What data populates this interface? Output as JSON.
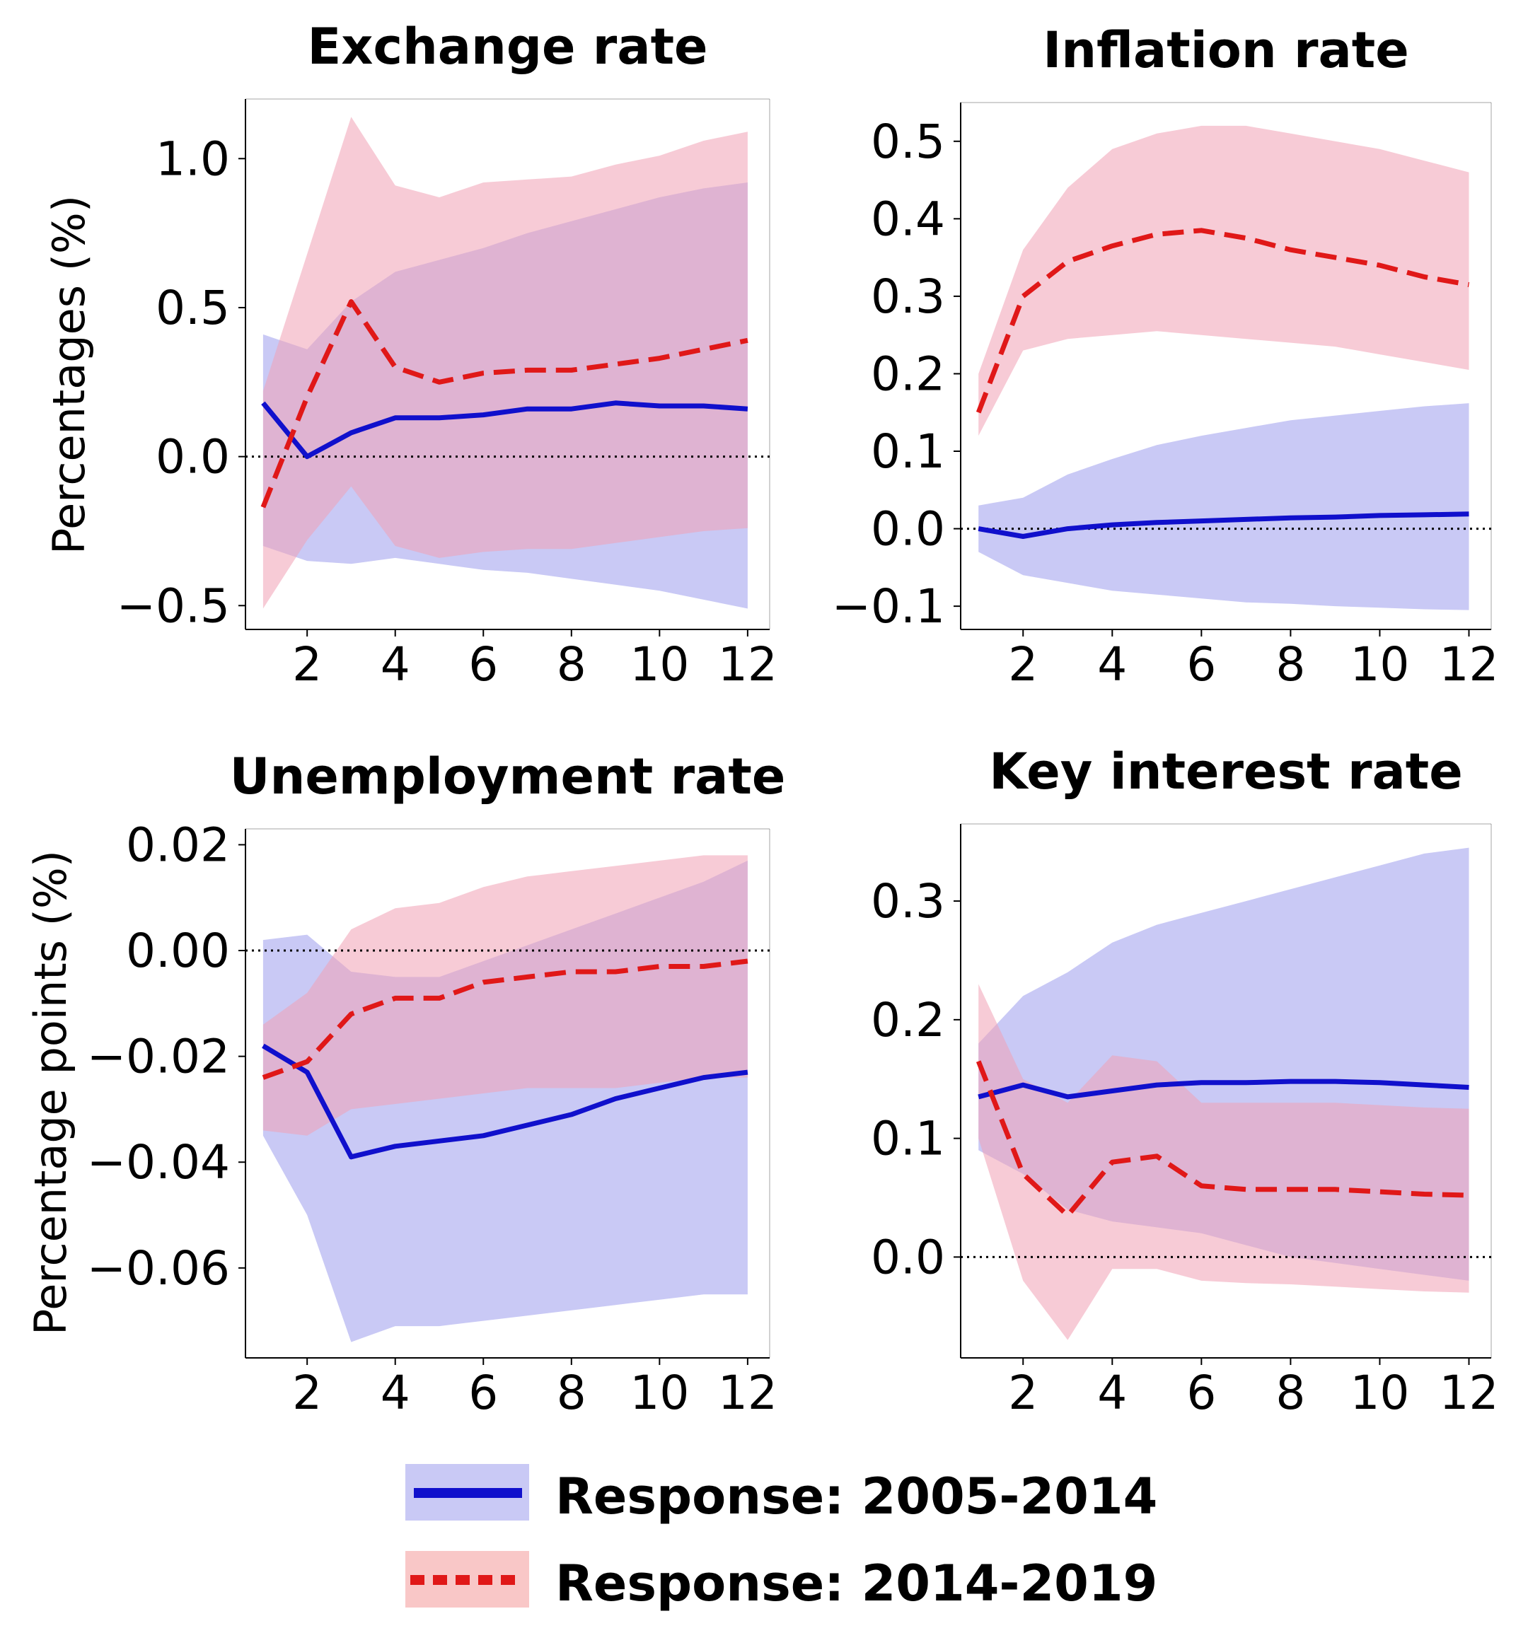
{
  "colors": {
    "series1_line": "#1010cc",
    "series1_band": "#c9c9f5",
    "series2_line": "#e01818",
    "series2_band": "#f9c7c7",
    "overlap_band": "#e8aac6"
  },
  "y_labels": {
    "top": "Percentages (%)",
    "bottom": "Percentage points  (%)"
  },
  "legend": [
    {
      "label": "Response: 2005-2014",
      "style": "solid",
      "color": "#1010cc"
    },
    {
      "label": "Response: 2014-2019",
      "style": "dotted",
      "color": "#e01818"
    }
  ],
  "chart_data": [
    {
      "type": "line",
      "title": "Exchange rate",
      "xlabel": "",
      "ylabel": "Percentages (%)",
      "x": [
        1,
        2,
        3,
        4,
        5,
        6,
        7,
        8,
        9,
        10,
        11,
        12
      ],
      "xlim": [
        0.6,
        12.5
      ],
      "ylim": [
        -0.58,
        1.2
      ],
      "xticks": [
        2,
        4,
        6,
        8,
        10,
        12
      ],
      "xtick_labels": [
        "2",
        "4",
        "6",
        "8",
        "10",
        "12"
      ],
      "yticks": [
        -0.5,
        0.0,
        0.5,
        1.0
      ],
      "ytick_labels": [
        "−0.5",
        "0.0",
        "0.5",
        "1.0"
      ],
      "zero_line": true,
      "series": [
        {
          "name": "Response: 2005-2014",
          "style": "solid",
          "values": [
            0.18,
            0.0,
            0.08,
            0.13,
            0.13,
            0.14,
            0.16,
            0.16,
            0.18,
            0.17,
            0.17,
            0.16
          ],
          "lower": [
            -0.3,
            -0.35,
            -0.36,
            -0.34,
            -0.36,
            -0.38,
            -0.39,
            -0.41,
            -0.43,
            -0.45,
            -0.48,
            -0.51
          ],
          "upper": [
            0.41,
            0.36,
            0.52,
            0.62,
            0.66,
            0.7,
            0.75,
            0.79,
            0.83,
            0.87,
            0.9,
            0.92
          ]
        },
        {
          "name": "Response: 2014-2019",
          "style": "dashed",
          "values": [
            -0.17,
            0.2,
            0.52,
            0.3,
            0.25,
            0.28,
            0.29,
            0.29,
            0.31,
            0.33,
            0.36,
            0.39
          ],
          "lower": [
            -0.51,
            -0.28,
            -0.1,
            -0.3,
            -0.34,
            -0.32,
            -0.31,
            -0.31,
            -0.29,
            -0.27,
            -0.25,
            -0.24
          ],
          "upper": [
            0.22,
            0.68,
            1.14,
            0.91,
            0.87,
            0.92,
            0.93,
            0.94,
            0.98,
            1.01,
            1.06,
            1.09
          ]
        }
      ]
    },
    {
      "type": "line",
      "title": "Inflation rate",
      "xlabel": "",
      "ylabel": "",
      "x": [
        1,
        2,
        3,
        4,
        5,
        6,
        7,
        8,
        9,
        10,
        11,
        12
      ],
      "xlim": [
        0.6,
        12.5
      ],
      "ylim": [
        -0.13,
        0.55
      ],
      "xticks": [
        2,
        4,
        6,
        8,
        10,
        12
      ],
      "xtick_labels": [
        "2",
        "4",
        "6",
        "8",
        "10",
        "12"
      ],
      "yticks": [
        -0.1,
        0.0,
        0.1,
        0.2,
        0.3,
        0.4,
        0.5
      ],
      "ytick_labels": [
        "−0.1",
        "0.0",
        "0.1",
        "0.2",
        "0.3",
        "0.4",
        "0.5"
      ],
      "zero_line": true,
      "series": [
        {
          "name": "Response: 2005-2014",
          "style": "solid",
          "values": [
            0.0,
            -0.01,
            0.0,
            0.005,
            0.008,
            0.01,
            0.012,
            0.014,
            0.015,
            0.017,
            0.018,
            0.019
          ],
          "lower": [
            -0.03,
            -0.06,
            -0.07,
            -0.08,
            -0.085,
            -0.09,
            -0.095,
            -0.097,
            -0.1,
            -0.102,
            -0.104,
            -0.105
          ],
          "upper": [
            0.03,
            0.04,
            0.07,
            0.09,
            0.108,
            0.12,
            0.13,
            0.14,
            0.146,
            0.152,
            0.158,
            0.162
          ]
        },
        {
          "name": "Response: 2014-2019",
          "style": "dashed",
          "values": [
            0.15,
            0.3,
            0.345,
            0.365,
            0.38,
            0.385,
            0.375,
            0.36,
            0.35,
            0.34,
            0.325,
            0.315
          ],
          "lower": [
            0.12,
            0.23,
            0.245,
            0.25,
            0.255,
            0.25,
            0.245,
            0.24,
            0.235,
            0.225,
            0.215,
            0.205
          ],
          "upper": [
            0.2,
            0.36,
            0.44,
            0.49,
            0.51,
            0.52,
            0.52,
            0.51,
            0.5,
            0.49,
            0.475,
            0.46
          ]
        }
      ]
    },
    {
      "type": "line",
      "title": "Unemployment rate",
      "xlabel": "",
      "ylabel": "Percentage points  (%)",
      "x": [
        1,
        2,
        3,
        4,
        5,
        6,
        7,
        8,
        9,
        10,
        11,
        12
      ],
      "xlim": [
        0.6,
        12.5
      ],
      "ylim": [
        -0.077,
        0.023
      ],
      "xticks": [
        2,
        4,
        6,
        8,
        10,
        12
      ],
      "xtick_labels": [
        "2",
        "4",
        "6",
        "8",
        "10",
        "12"
      ],
      "yticks": [
        -0.06,
        -0.04,
        -0.02,
        0.0,
        0.02
      ],
      "ytick_labels": [
        "−0.06",
        "−0.04",
        "−0.02",
        "0.00",
        "0.02"
      ],
      "zero_line": true,
      "series": [
        {
          "name": "Response: 2005-2014",
          "style": "solid",
          "values": [
            -0.018,
            -0.023,
            -0.039,
            -0.037,
            -0.036,
            -0.035,
            -0.033,
            -0.031,
            -0.028,
            -0.026,
            -0.024,
            -0.023
          ],
          "lower": [
            -0.035,
            -0.05,
            -0.074,
            -0.071,
            -0.071,
            -0.07,
            -0.069,
            -0.068,
            -0.067,
            -0.066,
            -0.065,
            -0.065
          ],
          "upper": [
            0.002,
            0.003,
            -0.004,
            -0.005,
            -0.005,
            -0.002,
            0.001,
            0.004,
            0.007,
            0.01,
            0.013,
            0.017
          ]
        },
        {
          "name": "Response: 2014-2019",
          "style": "dashed",
          "values": [
            -0.024,
            -0.021,
            -0.012,
            -0.009,
            -0.009,
            -0.006,
            -0.005,
            -0.004,
            -0.004,
            -0.003,
            -0.003,
            -0.002
          ],
          "lower": [
            -0.034,
            -0.035,
            -0.03,
            -0.029,
            -0.028,
            -0.027,
            -0.026,
            -0.026,
            -0.026,
            -0.025,
            -0.024,
            -0.024
          ],
          "upper": [
            -0.014,
            -0.008,
            0.004,
            0.008,
            0.009,
            0.012,
            0.014,
            0.015,
            0.016,
            0.017,
            0.018,
            0.018
          ]
        }
      ]
    },
    {
      "type": "line",
      "title": "Key interest rate",
      "xlabel": "",
      "ylabel": "",
      "x": [
        1,
        2,
        3,
        4,
        5,
        6,
        7,
        8,
        9,
        10,
        11,
        12
      ],
      "xlim": [
        0.6,
        12.5
      ],
      "ylim": [
        -0.085,
        0.365
      ],
      "xticks": [
        2,
        4,
        6,
        8,
        10,
        12
      ],
      "xtick_labels": [
        "2",
        "4",
        "6",
        "8",
        "10",
        "12"
      ],
      "yticks": [
        0.0,
        0.1,
        0.2,
        0.3
      ],
      "ytick_labels": [
        "0.0",
        "0.1",
        "0.2",
        "0.3"
      ],
      "zero_line": true,
      "series": [
        {
          "name": "Response: 2005-2014",
          "style": "solid",
          "values": [
            0.135,
            0.145,
            0.135,
            0.14,
            0.145,
            0.147,
            0.147,
            0.148,
            0.148,
            0.147,
            0.145,
            0.143
          ],
          "lower": [
            0.09,
            0.07,
            0.04,
            0.03,
            0.025,
            0.02,
            0.01,
            0.0,
            -0.005,
            -0.01,
            -0.015,
            -0.02
          ],
          "upper": [
            0.18,
            0.22,
            0.24,
            0.265,
            0.28,
            0.29,
            0.3,
            0.31,
            0.32,
            0.33,
            0.34,
            0.345
          ]
        },
        {
          "name": "Response: 2014-2019",
          "style": "dashed",
          "values": [
            0.165,
            0.07,
            0.035,
            0.08,
            0.085,
            0.06,
            0.057,
            0.057,
            0.057,
            0.055,
            0.053,
            0.052
          ],
          "lower": [
            0.1,
            -0.02,
            -0.07,
            -0.01,
            -0.01,
            -0.02,
            -0.022,
            -0.023,
            -0.025,
            -0.027,
            -0.029,
            -0.03
          ],
          "upper": [
            0.23,
            0.15,
            0.13,
            0.17,
            0.165,
            0.13,
            0.13,
            0.13,
            0.13,
            0.128,
            0.126,
            0.125
          ]
        }
      ]
    }
  ]
}
